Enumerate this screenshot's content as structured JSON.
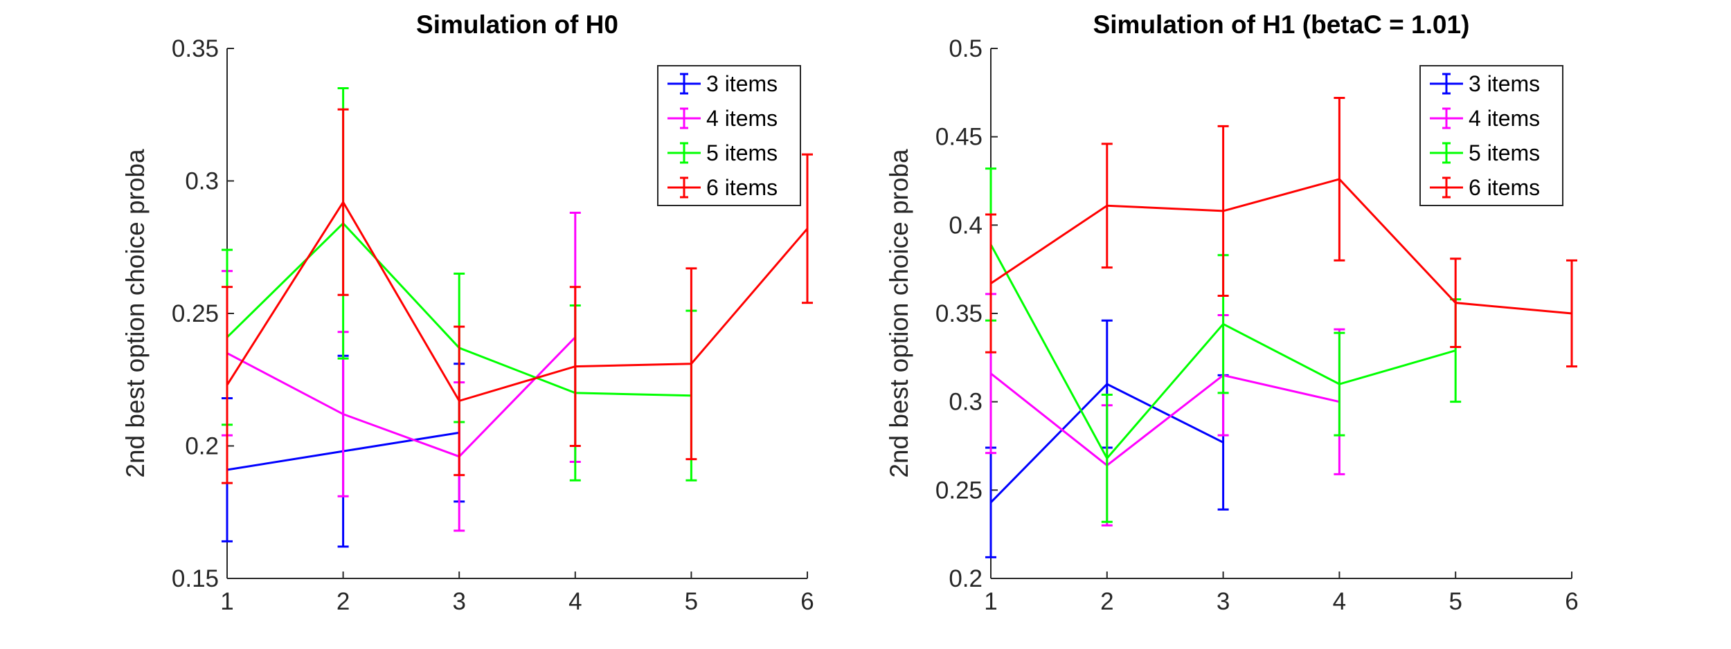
{
  "chart_data": [
    {
      "type": "line",
      "title": "Simulation of H0",
      "xlabel": "",
      "ylabel": "2nd best option choice proba",
      "xlim": [
        1,
        6
      ],
      "ylim": [
        0.15,
        0.35
      ],
      "xticks": [
        1,
        2,
        3,
        4,
        5,
        6
      ],
      "xtick_labels": [
        "1",
        "2",
        "3",
        "4",
        "5",
        "6"
      ],
      "yticks": [
        0.15,
        0.2,
        0.25,
        0.3,
        0.35
      ],
      "ytick_labels": [
        "0.15",
        "0.2",
        "0.25",
        "0.3",
        "0.35"
      ],
      "legend_position": "top-right",
      "series": [
        {
          "name": "3 items",
          "color": "#0000ff",
          "x": [
            1,
            2,
            3
          ],
          "y": [
            0.191,
            0.198,
            0.205
          ],
          "err": [
            0.027,
            0.036,
            0.026
          ]
        },
        {
          "name": "4 items",
          "color": "#ff00ff",
          "x": [
            1,
            2,
            3,
            4
          ],
          "y": [
            0.235,
            0.212,
            0.196,
            0.241
          ],
          "err": [
            0.031,
            0.031,
            0.028,
            0.047
          ]
        },
        {
          "name": "5 items",
          "color": "#00ff00",
          "x": [
            1,
            2,
            3,
            4,
            5
          ],
          "y": [
            0.241,
            0.284,
            0.237,
            0.22,
            0.219
          ],
          "err": [
            0.033,
            0.051,
            0.028,
            0.033,
            0.032
          ]
        },
        {
          "name": "6 items",
          "color": "#ff0000",
          "x": [
            1,
            2,
            3,
            4,
            5,
            6
          ],
          "y": [
            0.223,
            0.292,
            0.217,
            0.23,
            0.231,
            0.282
          ],
          "err": [
            0.037,
            0.035,
            0.028,
            0.03,
            0.036,
            0.028
          ]
        }
      ]
    },
    {
      "type": "line",
      "title": "Simulation of H1 (betaC = 1.01)",
      "xlabel": "",
      "ylabel": "2nd best option choice proba",
      "xlim": [
        1,
        6
      ],
      "ylim": [
        0.2,
        0.5
      ],
      "xticks": [
        1,
        2,
        3,
        4,
        5,
        6
      ],
      "xtick_labels": [
        "1",
        "2",
        "3",
        "4",
        "5",
        "6"
      ],
      "yticks": [
        0.2,
        0.25,
        0.3,
        0.35,
        0.4,
        0.45,
        0.5
      ],
      "ytick_labels": [
        "0.2",
        "0.25",
        "0.3",
        "0.35",
        "0.4",
        "0.45",
        "0.5"
      ],
      "legend_position": "top-right",
      "series": [
        {
          "name": "3 items",
          "color": "#0000ff",
          "x": [
            1,
            2,
            3
          ],
          "y": [
            0.243,
            0.31,
            0.277
          ],
          "err": [
            0.031,
            0.036,
            0.038
          ]
        },
        {
          "name": "4 items",
          "color": "#ff00ff",
          "x": [
            1,
            2,
            3,
            4
          ],
          "y": [
            0.316,
            0.264,
            0.315,
            0.3
          ],
          "err": [
            0.045,
            0.034,
            0.034,
            0.041
          ]
        },
        {
          "name": "5 items",
          "color": "#00ff00",
          "x": [
            1,
            2,
            3,
            4,
            5
          ],
          "y": [
            0.389,
            0.268,
            0.344,
            0.31,
            0.329
          ],
          "err": [
            0.043,
            0.036,
            0.039,
            0.029,
            0.029
          ]
        },
        {
          "name": "6 items",
          "color": "#ff0000",
          "x": [
            1,
            2,
            3,
            4,
            5,
            6
          ],
          "y": [
            0.367,
            0.411,
            0.408,
            0.426,
            0.356,
            0.35
          ],
          "err": [
            0.039,
            0.035,
            0.048,
            0.046,
            0.025,
            0.03
          ]
        }
      ]
    }
  ]
}
